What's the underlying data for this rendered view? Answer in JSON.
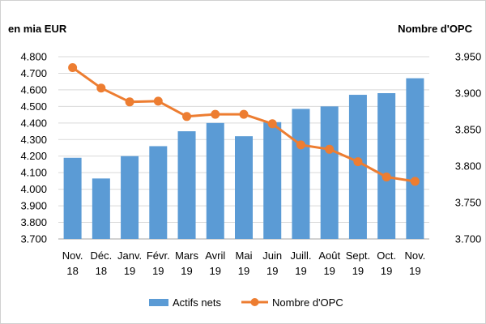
{
  "chart_data": {
    "type": "bar+line",
    "categories": [
      [
        "Nov.",
        "18"
      ],
      [
        "Déc.",
        "18"
      ],
      [
        "Janv.",
        "19"
      ],
      [
        "Févr.",
        "19"
      ],
      [
        "Mars",
        "19"
      ],
      [
        "Avril",
        "19"
      ],
      [
        "Mai",
        "19"
      ],
      [
        "Juin",
        "19"
      ],
      [
        "Juill.",
        "19"
      ],
      [
        "Août",
        "19"
      ],
      [
        "Sept.",
        "19"
      ],
      [
        "Oct.",
        "19"
      ],
      [
        "Nov.",
        "19"
      ]
    ],
    "left_axis": {
      "title": "en mia EUR",
      "min": 3700,
      "max": 4800,
      "step": 100,
      "tick_labels": [
        "3.700",
        "3.800",
        "3.900",
        "4.000",
        "4.100",
        "4.200",
        "4.300",
        "4.400",
        "4.500",
        "4.600",
        "4.700",
        "4.800"
      ]
    },
    "right_axis": {
      "title": "Nombre d'OPC",
      "min": 3700,
      "max": 3950,
      "step": 50,
      "tick_labels": [
        "3.700",
        "3.750",
        "3.800",
        "3.850",
        "3.900",
        "3.950"
      ]
    },
    "grid": true,
    "legend_position": "bottom",
    "series": [
      {
        "name": "Actifs nets",
        "type": "bar",
        "axis": "left",
        "color": "#5b9bd5",
        "values": [
          4190,
          4065,
          4200,
          4260,
          4350,
          4400,
          4320,
          4405,
          4485,
          4500,
          4570,
          4580,
          4670
        ]
      },
      {
        "name": "Nombre d'OPC",
        "type": "line",
        "axis": "right",
        "color": "#ed7d31",
        "values": [
          3935,
          3907,
          3888,
          3889,
          3868,
          3871,
          3871,
          3858,
          3829,
          3823,
          3806,
          3785,
          3779
        ]
      }
    ]
  }
}
